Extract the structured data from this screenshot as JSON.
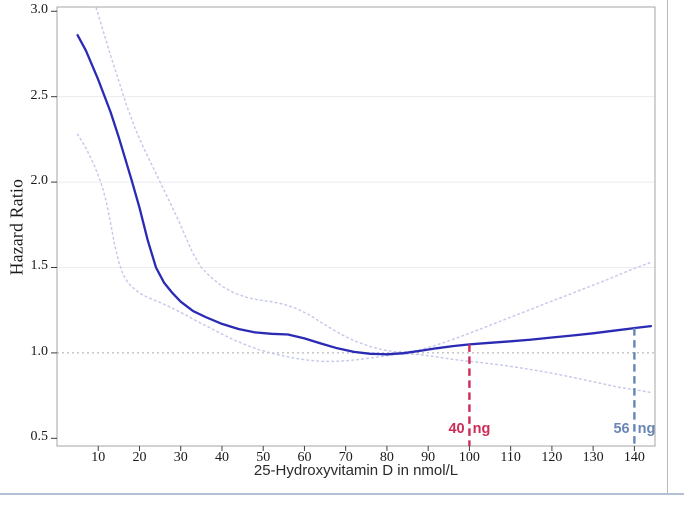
{
  "figure": {
    "background": "#ffffff",
    "outer_border_color": "#b3c0d4"
  },
  "chart_data": {
    "type": "line",
    "title": "",
    "xlabel": "25-Hydroxyvitamin D in nmol/L",
    "ylabel": "Hazard Ratio",
    "xlim": [
      0,
      145
    ],
    "ylim": [
      0.455,
      3.025
    ],
    "xticks": [
      10,
      20,
      30,
      40,
      50,
      60,
      70,
      80,
      90,
      100,
      110,
      120,
      130,
      140
    ],
    "yticks": [
      0.5,
      1.0,
      1.5,
      2.0,
      2.5,
      3.0
    ],
    "grid": "horizontal-only",
    "gridlines_y": [
      1.5,
      2.0,
      2.5
    ],
    "reference_line_y": 1.0,
    "legend": "none",
    "frame_color": "#a6a6a6",
    "gridline_color": "#ebebf0",
    "reference_line_color": "#a9a9a9",
    "tick_color": "#3c3c3c",
    "series": [
      {
        "name": "hazard-ratio-spline",
        "style": "solid",
        "color": "#2a2ab5",
        "width": 2.3,
        "points": [
          [
            5,
            2.86
          ],
          [
            7,
            2.77
          ],
          [
            10,
            2.6
          ],
          [
            13,
            2.41
          ],
          [
            15,
            2.26
          ],
          [
            18,
            2.02
          ],
          [
            20,
            1.85
          ],
          [
            22,
            1.66
          ],
          [
            24,
            1.5
          ],
          [
            26,
            1.41
          ],
          [
            28,
            1.35
          ],
          [
            30,
            1.3
          ],
          [
            33,
            1.245
          ],
          [
            36,
            1.21
          ],
          [
            40,
            1.17
          ],
          [
            44,
            1.14
          ],
          [
            48,
            1.12
          ],
          [
            52,
            1.112
          ],
          [
            56,
            1.108
          ],
          [
            60,
            1.085
          ],
          [
            64,
            1.055
          ],
          [
            68,
            1.027
          ],
          [
            72,
            1.006
          ],
          [
            76,
            0.995
          ],
          [
            80,
            0.992
          ],
          [
            84,
            0.998
          ],
          [
            88,
            1.012
          ],
          [
            92,
            1.027
          ],
          [
            96,
            1.04
          ],
          [
            100,
            1.05
          ],
          [
            105,
            1.059
          ],
          [
            110,
            1.068
          ],
          [
            115,
            1.078
          ],
          [
            120,
            1.09
          ],
          [
            125,
            1.102
          ],
          [
            130,
            1.115
          ],
          [
            135,
            1.13
          ],
          [
            140,
            1.145
          ],
          [
            144,
            1.157
          ]
        ]
      },
      {
        "name": "upper-95pct-ci",
        "style": "dotted",
        "color": "#c6cae9",
        "width": 1.5,
        "points": [
          [
            9.5,
            3.02
          ],
          [
            11,
            2.9
          ],
          [
            13,
            2.74
          ],
          [
            15,
            2.59
          ],
          [
            17,
            2.44
          ],
          [
            19,
            2.31
          ],
          [
            21,
            2.2
          ],
          [
            23,
            2.1
          ],
          [
            25,
            2.0
          ],
          [
            27,
            1.9
          ],
          [
            29,
            1.8
          ],
          [
            31,
            1.69
          ],
          [
            33,
            1.58
          ],
          [
            35,
            1.5
          ],
          [
            37,
            1.45
          ],
          [
            40,
            1.39
          ],
          [
            43,
            1.35
          ],
          [
            46,
            1.325
          ],
          [
            49,
            1.31
          ],
          [
            52,
            1.3
          ],
          [
            55,
            1.285
          ],
          [
            58,
            1.26
          ],
          [
            61,
            1.225
          ],
          [
            64,
            1.18
          ],
          [
            67,
            1.135
          ],
          [
            70,
            1.095
          ],
          [
            73,
            1.062
          ],
          [
            76,
            1.037
          ],
          [
            79,
            1.018
          ],
          [
            82,
            1.007
          ],
          [
            85,
            1.006
          ],
          [
            88,
            1.018
          ],
          [
            91,
            1.038
          ],
          [
            94,
            1.062
          ],
          [
            97,
            1.088
          ],
          [
            100,
            1.115
          ],
          [
            104,
            1.152
          ],
          [
            108,
            1.19
          ],
          [
            112,
            1.228
          ],
          [
            116,
            1.265
          ],
          [
            120,
            1.303
          ],
          [
            124,
            1.34
          ],
          [
            128,
            1.378
          ],
          [
            132,
            1.415
          ],
          [
            136,
            1.455
          ],
          [
            140,
            1.495
          ],
          [
            144,
            1.53
          ]
        ]
      },
      {
        "name": "lower-95pct-ci",
        "style": "dotted",
        "color": "#c6cae9",
        "width": 1.5,
        "points": [
          [
            5,
            2.28
          ],
          [
            7,
            2.2
          ],
          [
            9,
            2.1
          ],
          [
            10,
            2.04
          ],
          [
            11,
            1.97
          ],
          [
            12,
            1.88
          ],
          [
            13,
            1.76
          ],
          [
            14,
            1.63
          ],
          [
            15,
            1.53
          ],
          [
            16,
            1.46
          ],
          [
            17,
            1.42
          ],
          [
            18,
            1.39
          ],
          [
            20,
            1.35
          ],
          [
            22,
            1.325
          ],
          [
            25,
            1.295
          ],
          [
            28,
            1.262
          ],
          [
            31,
            1.225
          ],
          [
            34,
            1.185
          ],
          [
            37,
            1.148
          ],
          [
            40,
            1.11
          ],
          [
            43,
            1.075
          ],
          [
            46,
            1.045
          ],
          [
            49,
            1.018
          ],
          [
            52,
            0.998
          ],
          [
            55,
            0.982
          ],
          [
            58,
            0.967
          ],
          [
            61,
            0.957
          ],
          [
            64,
            0.951
          ],
          [
            67,
            0.95
          ],
          [
            70,
            0.954
          ],
          [
            73,
            0.961
          ],
          [
            76,
            0.97
          ],
          [
            79,
            0.981
          ],
          [
            82,
            0.99
          ],
          [
            85,
            0.994
          ],
          [
            88,
            0.99
          ],
          [
            91,
            0.98
          ],
          [
            94,
            0.969
          ],
          [
            97,
            0.959
          ],
          [
            100,
            0.951
          ],
          [
            104,
            0.94
          ],
          [
            108,
            0.928
          ],
          [
            112,
            0.914
          ],
          [
            116,
            0.898
          ],
          [
            120,
            0.881
          ],
          [
            124,
            0.862
          ],
          [
            128,
            0.842
          ],
          [
            132,
            0.821
          ],
          [
            136,
            0.8
          ],
          [
            140,
            0.785
          ],
          [
            144,
            0.768
          ]
        ]
      }
    ],
    "markers": [
      {
        "x": 100,
        "curve_y": 1.05,
        "label": "40 ng",
        "label_left": "40",
        "label_right": "ng",
        "color": "#ce2b57"
      },
      {
        "x": 140,
        "curve_y": 1.145,
        "label": "56 ng",
        "label_left": "56",
        "label_right": "ng",
        "color": "#6886b4"
      }
    ]
  }
}
